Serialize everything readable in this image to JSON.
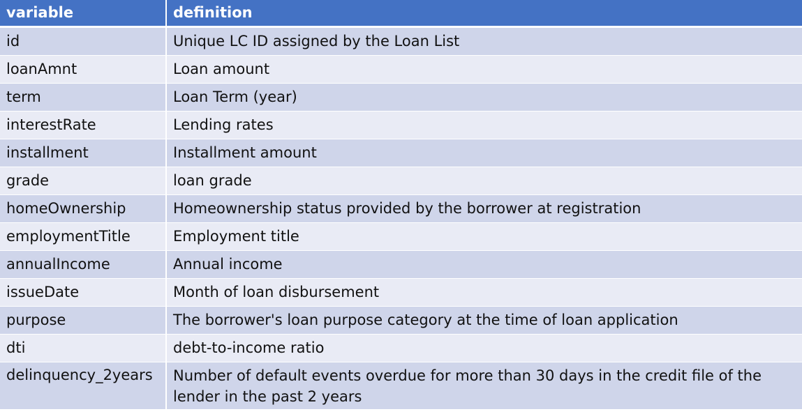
{
  "table": {
    "headers": [
      "variable",
      "definition"
    ],
    "rows": [
      {
        "variable": "id",
        "definition": "Unique LC ID assigned by the Loan List"
      },
      {
        "variable": "loanAmnt",
        "definition": "Loan amount"
      },
      {
        "variable": "term",
        "definition": "Loan Term (year)"
      },
      {
        "variable": "interestRate",
        "definition": "Lending rates"
      },
      {
        "variable": "installment",
        "definition": "Installment amount"
      },
      {
        "variable": "grade",
        "definition": "loan grade"
      },
      {
        "variable": "homeOwnership",
        "definition": "Homeownership status provided by the borrower at registration"
      },
      {
        "variable": "employmentTitle",
        "definition": "Employment title"
      },
      {
        "variable": "annualIncome",
        "definition": "Annual income"
      },
      {
        "variable": "issueDate",
        "definition": "Month of loan disbursement"
      },
      {
        "variable": "purpose",
        "definition": "The borrower's loan purpose category at the time of loan application"
      },
      {
        "variable": "dti",
        "definition": "debt-to-income ratio"
      },
      {
        "variable": "delinquency_2years",
        "definition": "Number of default events overdue for more than 30 days in the credit file of the lender in the past 2 years"
      }
    ],
    "colors": {
      "header": "#4472c4",
      "row_dark": "#cfd5ea",
      "row_light": "#e9ebf5"
    }
  }
}
